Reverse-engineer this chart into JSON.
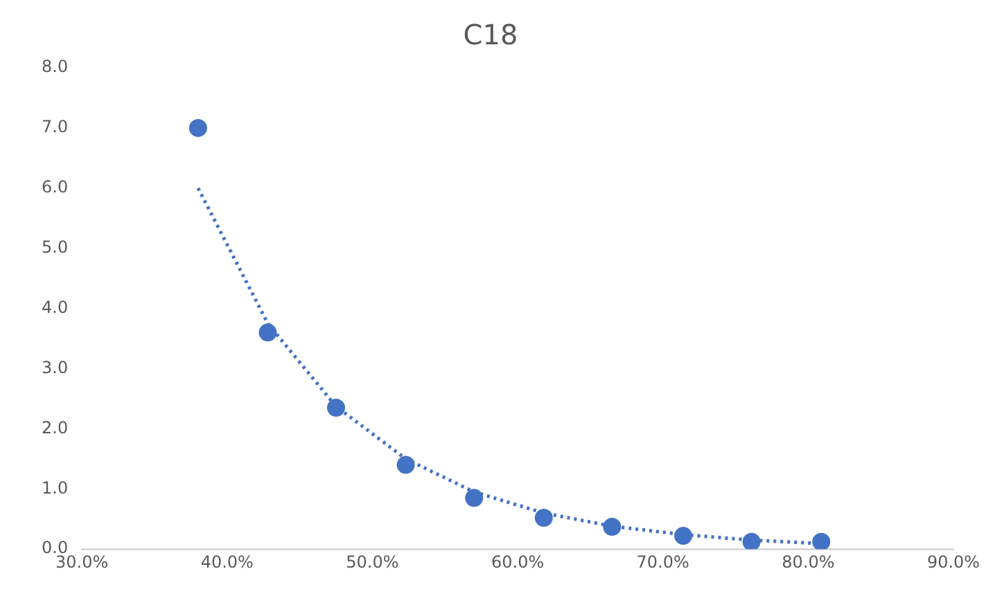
{
  "chart_data": {
    "type": "scatter",
    "title": "C18",
    "marker": "circle",
    "grid": false,
    "legend": false,
    "x": [
      38.0,
      42.8,
      47.5,
      52.3,
      57.0,
      61.8,
      66.5,
      71.4,
      76.1,
      80.9
    ],
    "xlim": [
      30,
      90
    ],
    "xticks": [
      {
        "value": 30,
        "label": "30.0%"
      },
      {
        "value": 40,
        "label": "40.0%"
      },
      {
        "value": 50,
        "label": "50.0%"
      },
      {
        "value": 60,
        "label": "60.0%"
      },
      {
        "value": 70,
        "label": "70.0%"
      },
      {
        "value": 80,
        "label": "80.0%"
      },
      {
        "value": 90,
        "label": "90.0%"
      }
    ],
    "ylim": [
      0,
      8
    ],
    "yticks": [
      {
        "value": 0,
        "label": "0.0"
      },
      {
        "value": 1,
        "label": "1.0"
      },
      {
        "value": 2,
        "label": "2.0"
      },
      {
        "value": 3,
        "label": "3.0"
      },
      {
        "value": 4,
        "label": "4.0"
      },
      {
        "value": 5,
        "label": "5.0"
      },
      {
        "value": 6,
        "label": "6.0"
      },
      {
        "value": 7,
        "label": "7.0"
      },
      {
        "value": 8,
        "label": "8.0"
      }
    ],
    "series": [
      {
        "color": "#4472c4",
        "values": [
          7.0,
          3.6,
          2.35,
          1.4,
          0.85,
          0.52,
          0.37,
          0.22,
          0.12,
          0.12
        ]
      },
      {
        "type": "line",
        "line_style": "dotted",
        "marker": "none",
        "color": "#4472c4",
        "x": [
          38.0,
          42.8,
          47.5,
          52.3,
          57.0,
          61.8,
          66.5,
          71.4,
          76.1,
          80.9
        ],
        "values": [
          6.0,
          3.75,
          2.37,
          1.5,
          0.95,
          0.6,
          0.38,
          0.24,
          0.15,
          0.09
        ]
      }
    ]
  }
}
